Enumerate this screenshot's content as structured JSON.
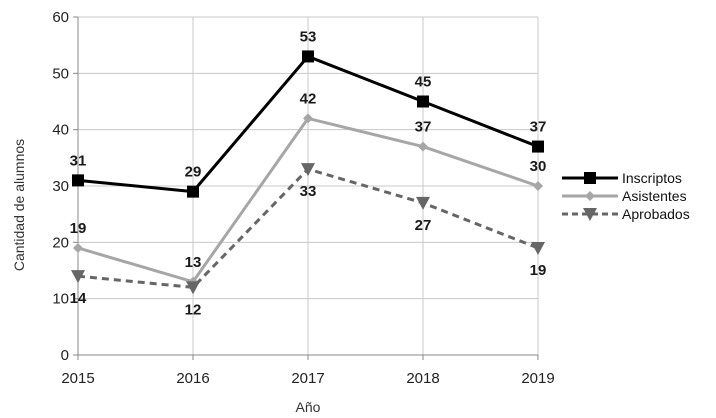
{
  "chart_data": {
    "type": "line",
    "title": "",
    "xlabel": "Año",
    "ylabel": "Cantidad de alumnos",
    "categories": [
      "2015",
      "2016",
      "2017",
      "2018",
      "2019"
    ],
    "ylim": [
      0,
      60
    ],
    "yticks": [
      0,
      10,
      20,
      30,
      40,
      50,
      60
    ],
    "grid": true,
    "legend_position": "right",
    "series": [
      {
        "name": "Inscriptos",
        "values": [
          31,
          29,
          53,
          45,
          37
        ],
        "color": "#000000",
        "marker": "square",
        "line": "solid"
      },
      {
        "name": "Asistentes",
        "values": [
          19,
          13,
          42,
          37,
          30
        ],
        "color": "#a6a6a6",
        "marker": "diamond",
        "line": "solid"
      },
      {
        "name": "Aprobados",
        "values": [
          14,
          12,
          33,
          27,
          19
        ],
        "color": "#666666",
        "marker": "triangle-down",
        "line": "dashed"
      }
    ]
  }
}
